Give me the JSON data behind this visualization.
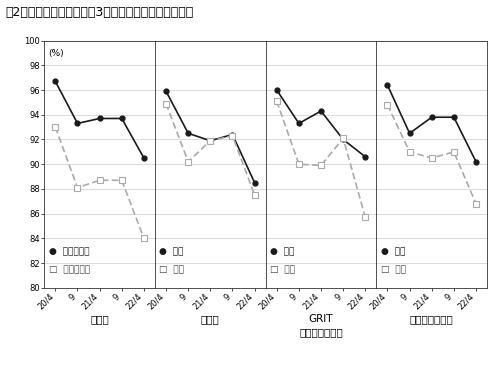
{
  "title": "図2　個人特性別にみた「3密」を回避した割合の推移",
  "pct_label": "(%)",
  "ylim": [
    80,
    100
  ],
  "yticks": [
    80,
    82,
    84,
    86,
    88,
    90,
    92,
    94,
    96,
    98,
    100
  ],
  "x_labels": [
    "20/4",
    "9",
    "21/4",
    "9",
    "22/4"
  ],
  "panels": [
    {
      "xlabel": "リスク",
      "legend1": "リスク回避",
      "legend2": "リスク愛好",
      "high": [
        96.7,
        93.3,
        93.7,
        93.7,
        90.5
      ],
      "low": [
        93.0,
        88.1,
        88.7,
        88.7,
        84.0
      ]
    },
    {
      "xlabel": "勤勉性",
      "legend1": "高い",
      "legend2": "低い",
      "high": [
        95.9,
        92.5,
        91.9,
        92.4,
        88.5
      ],
      "low": [
        94.9,
        90.2,
        91.9,
        92.3,
        87.5
      ]
    },
    {
      "xlabel": "GRIT\n（やり抜く力）",
      "legend1": "高い",
      "legend2": "低い",
      "high": [
        96.0,
        93.3,
        94.3,
        92.0,
        90.6
      ],
      "low": [
        95.1,
        90.0,
        89.9,
        92.1,
        85.7
      ]
    },
    {
      "xlabel": "ポジティブ志向",
      "legend1": "高い",
      "legend2": "低い",
      "high": [
        96.4,
        92.5,
        93.8,
        93.8,
        90.2
      ],
      "low": [
        94.8,
        91.0,
        90.5,
        91.0,
        86.8
      ]
    }
  ],
  "color_high": "#1a1a1a",
  "color_low": "#aaaaaa",
  "bg_color": "#ffffff",
  "grid_color": "#cccccc",
  "title_fontsize": 9.0,
  "tick_fontsize": 6.0,
  "xlabel_fontsize": 7.5,
  "legend_fontsize": 6.5,
  "pct_fontsize": 6.5
}
